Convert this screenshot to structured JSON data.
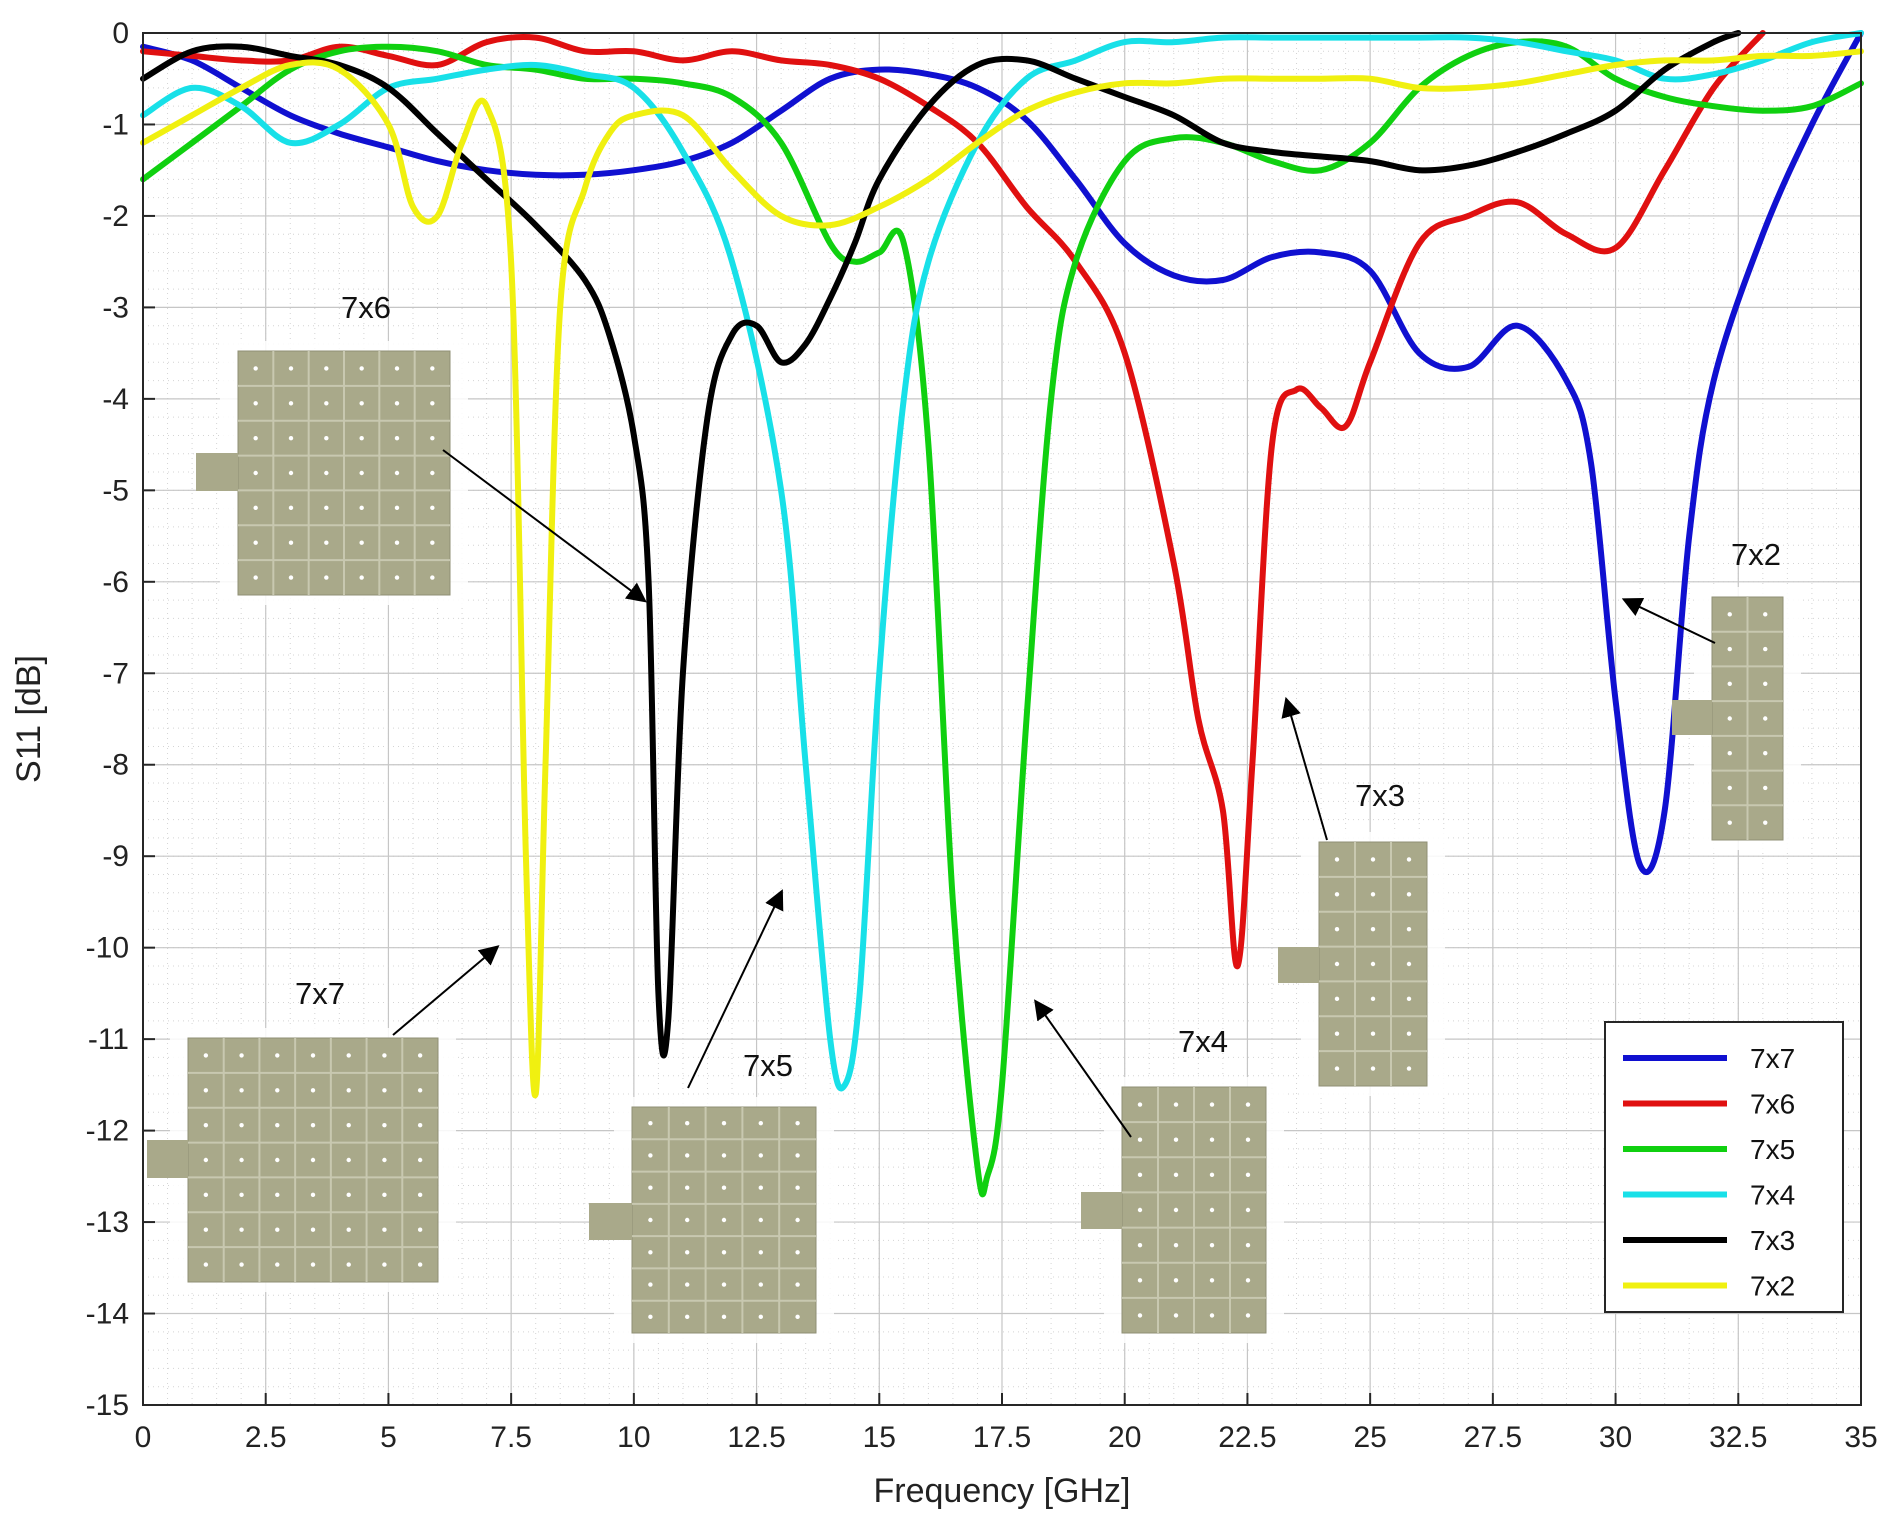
{
  "chart_data": {
    "type": "line",
    "title": "",
    "xlabel": "Frequency [GHz]",
    "ylabel": "S11 [dB]",
    "xlim": [
      0,
      35
    ],
    "ylim": [
      -15,
      0
    ],
    "x_ticks": [
      0,
      2.5,
      5,
      7.5,
      10,
      12.5,
      15,
      17.5,
      20,
      22.5,
      25,
      27.5,
      30,
      32.5,
      35
    ],
    "x_tick_labels": [
      "0",
      "2.5",
      "5",
      "7.5",
      "10",
      "12.5",
      "15",
      "17.5",
      "20",
      "22.5",
      "25",
      "27.5",
      "30",
      "32.5",
      "35"
    ],
    "y_ticks": [
      0,
      -1,
      -2,
      -3,
      -4,
      -5,
      -6,
      -7,
      -8,
      -9,
      -10,
      -11,
      -12,
      -13,
      -14,
      -15
    ],
    "y_tick_labels": [
      "0",
      "-1",
      "-2",
      "-3",
      "-4",
      "-5",
      "-6",
      "-7",
      "-8",
      "-9",
      "-10",
      "-11",
      "-12",
      "-13",
      "-14",
      "-15"
    ],
    "grid": true,
    "minor_grid": true,
    "legend_position": "bottom-right",
    "series": [
      {
        "name": "7x7",
        "color": "#1010d0",
        "x": [
          0,
          1,
          2,
          3,
          4,
          5,
          6,
          7,
          8,
          9,
          10,
          11,
          12,
          13,
          14,
          15,
          16,
          17,
          18,
          19,
          20,
          21,
          22,
          23,
          24,
          25,
          26,
          27,
          28,
          29,
          29.5,
          30,
          30.5,
          31,
          31.5,
          32,
          33,
          34,
          35
        ],
        "y": [
          -0.15,
          -0.3,
          -0.6,
          -0.9,
          -1.1,
          -1.25,
          -1.4,
          -1.5,
          -1.55,
          -1.55,
          -1.5,
          -1.4,
          -1.2,
          -0.85,
          -0.5,
          -0.4,
          -0.45,
          -0.6,
          -0.95,
          -1.6,
          -2.3,
          -2.65,
          -2.7,
          -2.45,
          -2.4,
          -2.6,
          -3.5,
          -3.65,
          -3.2,
          -3.8,
          -4.7,
          -7.3,
          -9.1,
          -8.5,
          -5.5,
          -3.8,
          -2.2,
          -1.0,
          0
        ]
      },
      {
        "name": "7x6",
        "color": "#e01010",
        "x": [
          0,
          1,
          2,
          3,
          4,
          5,
          6,
          7,
          8,
          9,
          10,
          11,
          12,
          13,
          14,
          15,
          16,
          17,
          18,
          19,
          20,
          21,
          21.5,
          22,
          22.3,
          22.6,
          23,
          23.5,
          24,
          24.5,
          25,
          26,
          27,
          28,
          29,
          30,
          31,
          32,
          33
        ],
        "y": [
          -0.2,
          -0.25,
          -0.3,
          -0.3,
          -0.15,
          -0.25,
          -0.35,
          -0.1,
          -0.05,
          -0.2,
          -0.2,
          -0.3,
          -0.2,
          -0.3,
          -0.35,
          -0.5,
          -0.8,
          -1.2,
          -1.9,
          -2.5,
          -3.5,
          -5.8,
          -7.5,
          -8.5,
          -10.2,
          -8,
          -4.5,
          -3.9,
          -4.1,
          -4.3,
          -3.6,
          -2.3,
          -2.0,
          -1.85,
          -2.2,
          -2.35,
          -1.5,
          -0.6,
          0
        ]
      },
      {
        "name": "7x5",
        "color": "#10d010",
        "x": [
          0,
          1,
          2,
          3,
          4,
          5,
          6,
          7,
          8,
          9,
          10,
          11,
          12,
          13,
          14,
          14.5,
          15,
          15.5,
          16,
          16.5,
          17,
          17.2,
          17.5,
          18,
          18.5,
          19,
          20,
          21,
          22,
          23,
          24,
          25,
          26,
          27,
          28,
          29,
          30,
          31,
          32,
          33,
          34,
          35
        ],
        "y": [
          -1.6,
          -1.2,
          -0.8,
          -0.4,
          -0.2,
          -0.15,
          -0.2,
          -0.35,
          -0.4,
          -0.5,
          -0.5,
          -0.55,
          -0.7,
          -1.2,
          -2.3,
          -2.5,
          -2.4,
          -2.3,
          -4.5,
          -9.5,
          -12.4,
          -12.5,
          -11.5,
          -7.5,
          -4,
          -2.5,
          -1.4,
          -1.15,
          -1.2,
          -1.4,
          -1.5,
          -1.2,
          -0.6,
          -0.25,
          -0.1,
          -0.15,
          -0.5,
          -0.7,
          -0.8,
          -0.85,
          -0.8,
          -0.55
        ]
      },
      {
        "name": "7x4",
        "color": "#18e0e8",
        "x": [
          0,
          1,
          2,
          3,
          4,
          5,
          6,
          7,
          8,
          9,
          10,
          11,
          12,
          13,
          13.5,
          14,
          14.3,
          14.6,
          15,
          15.5,
          16,
          17,
          18,
          19,
          20,
          21,
          22,
          23,
          24,
          25,
          26,
          27,
          28,
          29,
          30,
          31,
          32,
          33,
          34,
          35
        ],
        "y": [
          -0.9,
          -0.6,
          -0.8,
          -1.2,
          -1.0,
          -0.6,
          -0.5,
          -0.4,
          -0.35,
          -0.45,
          -0.6,
          -1.3,
          -2.5,
          -5.0,
          -8.0,
          -11.0,
          -11.5,
          -10.5,
          -7.0,
          -4.0,
          -2.5,
          -1.2,
          -0.5,
          -0.3,
          -0.1,
          -0.1,
          -0.05,
          -0.05,
          -0.05,
          -0.05,
          -0.05,
          -0.05,
          -0.1,
          -0.2,
          -0.3,
          -0.5,
          -0.45,
          -0.3,
          -0.1,
          0
        ]
      },
      {
        "name": "7x3",
        "color": "#000000",
        "x": [
          0,
          1,
          2,
          3,
          4,
          5,
          6,
          7,
          8,
          9,
          9.5,
          10,
          10.3,
          10.5,
          10.7,
          11,
          11.5,
          12,
          12.5,
          13,
          13.5,
          14,
          14.5,
          15,
          16,
          17,
          18,
          19,
          20,
          21,
          22,
          23,
          24,
          25,
          26,
          27,
          28,
          29,
          30,
          31,
          32,
          32.5
        ],
        "y": [
          -0.5,
          -0.2,
          -0.15,
          -0.25,
          -0.35,
          -0.6,
          -1.1,
          -1.6,
          -2.1,
          -2.7,
          -3.3,
          -4.4,
          -6.0,
          -10.5,
          -10.8,
          -7.0,
          -4.2,
          -3.3,
          -3.2,
          -3.6,
          -3.4,
          -2.9,
          -2.3,
          -1.6,
          -0.8,
          -0.35,
          -0.3,
          -0.5,
          -0.7,
          -0.9,
          -1.2,
          -1.3,
          -1.35,
          -1.4,
          -1.5,
          -1.45,
          -1.3,
          -1.1,
          -0.85,
          -0.4,
          -0.1,
          0
        ]
      },
      {
        "name": "7x2",
        "color": "#f0f010",
        "x": [
          0,
          1,
          2,
          3,
          4,
          5,
          5.5,
          6,
          6.5,
          7,
          7.5,
          7.8,
          8,
          8.2,
          8.5,
          9,
          9.5,
          10,
          11,
          12,
          13,
          14,
          15,
          16,
          17,
          18,
          19,
          20,
          21,
          22,
          23,
          24,
          25,
          26,
          27,
          28,
          29,
          30,
          31,
          32,
          33,
          34,
          35
        ],
        "y": [
          -1.2,
          -0.9,
          -0.6,
          -0.35,
          -0.4,
          -1.0,
          -1.9,
          -2.0,
          -1.2,
          -0.8,
          -2.5,
          -9.0,
          -11.6,
          -8.0,
          -3.0,
          -1.7,
          -1.1,
          -0.9,
          -0.9,
          -1.5,
          -2.0,
          -2.1,
          -1.9,
          -1.6,
          -1.2,
          -0.85,
          -0.65,
          -0.55,
          -0.55,
          -0.5,
          -0.5,
          -0.5,
          -0.5,
          -0.6,
          -0.6,
          -0.55,
          -0.45,
          -0.35,
          -0.3,
          -0.3,
          -0.25,
          -0.25,
          -0.2
        ]
      }
    ],
    "annotations": [
      {
        "label": "7x7",
        "rows": 7,
        "cols": 7,
        "arrow_to": [
          7.2,
          -10.0
        ]
      },
      {
        "label": "7x6",
        "rows": 7,
        "cols": 6,
        "arrow_to": [
          10.2,
          -6.2
        ]
      },
      {
        "label": "7x5",
        "rows": 7,
        "cols": 5,
        "arrow_to": [
          13.0,
          -9.4
        ]
      },
      {
        "label": "7x4",
        "rows": 7,
        "cols": 4,
        "arrow_to": [
          18.2,
          -10.6
        ]
      },
      {
        "label": "7x3",
        "rows": 7,
        "cols": 3,
        "arrow_to": [
          23.3,
          -7.3
        ]
      },
      {
        "label": "7x2",
        "rows": 7,
        "cols": 2,
        "arrow_to": [
          30.2,
          -6.2
        ]
      }
    ]
  }
}
